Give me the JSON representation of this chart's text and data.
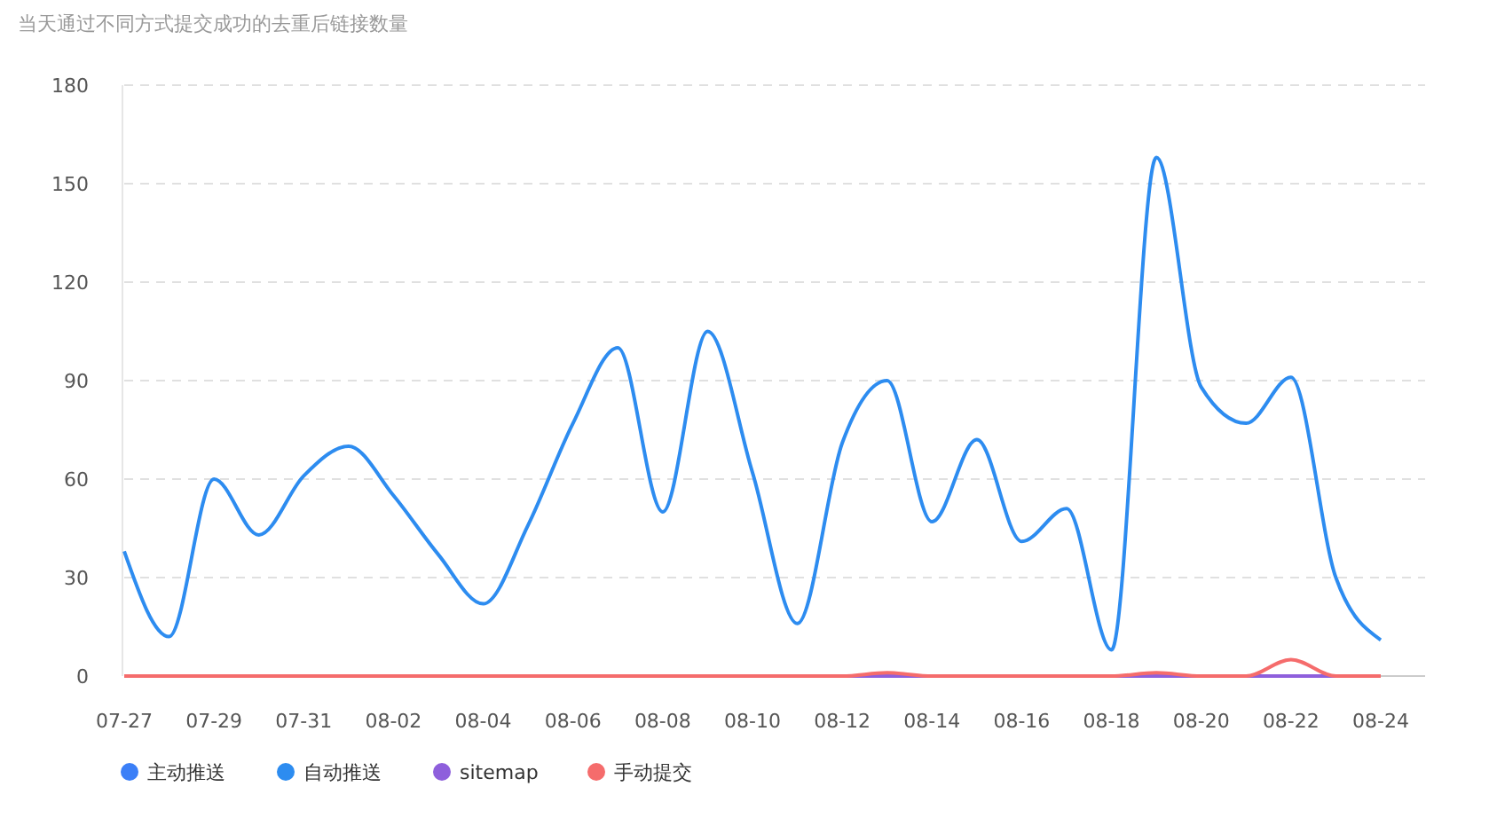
{
  "chart_data": {
    "type": "line",
    "title": "当天通过不同方式提交成功的去重后链接数量",
    "categories": [
      "07-27",
      null,
      "07-29",
      null,
      "07-31",
      null,
      "08-02",
      null,
      "08-04",
      null,
      "08-06",
      null,
      "08-08",
      null,
      "08-10",
      null,
      "08-12",
      null,
      "08-14",
      null,
      "08-16",
      null,
      "08-18",
      null,
      "08-20",
      null,
      "08-22",
      null,
      "08-24"
    ],
    "series": [
      {
        "name": "主动推送",
        "color": "#3b7ff7",
        "values": [
          null,
          null,
          null,
          null,
          null,
          null,
          null,
          null,
          null,
          null,
          null,
          null,
          null,
          null,
          null,
          null,
          null,
          null,
          null,
          null,
          null,
          null,
          null,
          null,
          null,
          null,
          null,
          null,
          null
        ]
      },
      {
        "name": "自动推送",
        "color": "#2d8cf0",
        "values": [
          38,
          12,
          60,
          43,
          61,
          70,
          55,
          37,
          22,
          46,
          77,
          100,
          50,
          105,
          62,
          16,
          71,
          90,
          47,
          72,
          41,
          51,
          8,
          158,
          88,
          77,
          91,
          30,
          11
        ]
      },
      {
        "name": "sitemap",
        "color": "#8e5fdc",
        "values": [
          null,
          null,
          null,
          null,
          null,
          null,
          null,
          null,
          null,
          null,
          null,
          null,
          null,
          null,
          null,
          null,
          0,
          0,
          0,
          null,
          null,
          null,
          0,
          0,
          0,
          0,
          0,
          0,
          null
        ]
      },
      {
        "name": "手动提交",
        "color": "#f56c6c",
        "values": [
          0,
          0,
          0,
          0,
          0,
          0,
          0,
          0,
          0,
          0,
          0,
          0,
          0,
          0,
          0,
          0,
          0,
          1,
          0,
          0,
          0,
          0,
          0,
          1,
          0,
          0,
          5,
          0,
          0
        ]
      }
    ],
    "ylim": [
      0,
      180
    ],
    "yticks": [
      0,
      30,
      60,
      90,
      120,
      150,
      180
    ],
    "grid": "y",
    "legend": "bottom",
    "marker": "none",
    "line_style": "solid"
  }
}
